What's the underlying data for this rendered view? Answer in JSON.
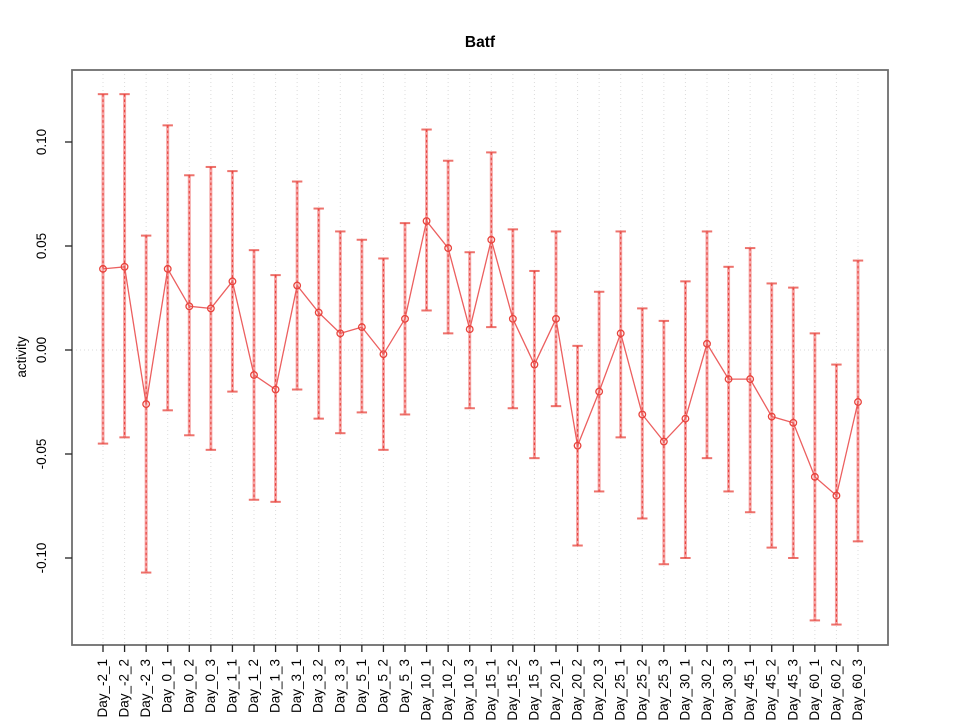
{
  "figure": {
    "background": "#ffffff"
  },
  "chart_data": {
    "type": "line",
    "title": "Batf",
    "xlabel": "",
    "ylabel": "activity",
    "legend_position": "none",
    "marker": "open-circle",
    "error_bars": true,
    "grid": "vertical-dotted",
    "zero_reference_line": "dotted",
    "categories": [
      "Day_-2_1",
      "Day_-2_2",
      "Day_-2_3",
      "Day_0_1",
      "Day_0_2",
      "Day_0_3",
      "Day_1_1",
      "Day_1_2",
      "Day_1_3",
      "Day_3_1",
      "Day_3_2",
      "Day_3_3",
      "Day_5_1",
      "Day_5_2",
      "Day_5_3",
      "Day_10_1",
      "Day_10_2",
      "Day_10_3",
      "Day_15_1",
      "Day_15_2",
      "Day_15_3",
      "Day_20_1",
      "Day_20_2",
      "Day_20_3",
      "Day_25_1",
      "Day_25_2",
      "Day_25_3",
      "Day_30_1",
      "Day_30_2",
      "Day_30_3",
      "Day_45_1",
      "Day_45_2",
      "Day_45_3",
      "Day_60_1",
      "Day_60_2",
      "Day_60_3"
    ],
    "series": [
      {
        "name": "Batf activity",
        "values": [
          0.039,
          0.04,
          -0.026,
          0.039,
          0.021,
          0.02,
          0.033,
          -0.012,
          -0.019,
          0.031,
          0.018,
          0.008,
          0.011,
          -0.002,
          0.015,
          0.062,
          0.049,
          0.01,
          0.053,
          0.015,
          -0.007,
          0.015,
          -0.046,
          -0.02,
          0.008,
          -0.031,
          -0.044,
          -0.033,
          0.003,
          -0.014,
          -0.014,
          -0.032,
          -0.035,
          -0.061,
          -0.07,
          -0.025
        ],
        "upper": [
          0.123,
          0.123,
          0.055,
          0.108,
          0.084,
          0.088,
          0.086,
          0.048,
          0.036,
          0.081,
          0.068,
          0.057,
          0.053,
          0.044,
          0.061,
          0.106,
          0.091,
          0.047,
          0.095,
          0.058,
          0.038,
          0.057,
          0.002,
          0.028,
          0.057,
          0.02,
          0.014,
          0.033,
          0.057,
          0.04,
          0.049,
          0.032,
          0.03,
          0.008,
          -0.007,
          0.043
        ],
        "lower": [
          -0.045,
          -0.042,
          -0.107,
          -0.029,
          -0.041,
          -0.048,
          -0.02,
          -0.072,
          -0.073,
          -0.019,
          -0.033,
          -0.04,
          -0.03,
          -0.048,
          -0.031,
          0.019,
          0.008,
          -0.028,
          0.011,
          -0.028,
          -0.052,
          -0.027,
          -0.094,
          -0.068,
          -0.042,
          -0.081,
          -0.103,
          -0.1,
          -0.052,
          -0.068,
          -0.078,
          -0.095,
          -0.1,
          -0.13,
          -0.132,
          -0.092
        ]
      }
    ],
    "ylim": [
      -0.142,
      0.135
    ],
    "yticks": [
      -0.1,
      -0.05,
      0.0,
      0.05,
      0.1
    ],
    "ytick_labels": [
      "-0.10",
      "-0.05",
      "0.00",
      "0.05",
      "0.10"
    ],
    "colors": {
      "error_bar": "#f5a3a3",
      "error_bar_dash": "#e8433c",
      "series_line": "#ec5f5f",
      "marker": "#e8433c",
      "grid": "#dcdcdc",
      "zero_line": "#d9d9d9",
      "axis_box": "#6e6e6e",
      "tick": "#222222",
      "text": "#000000"
    }
  }
}
